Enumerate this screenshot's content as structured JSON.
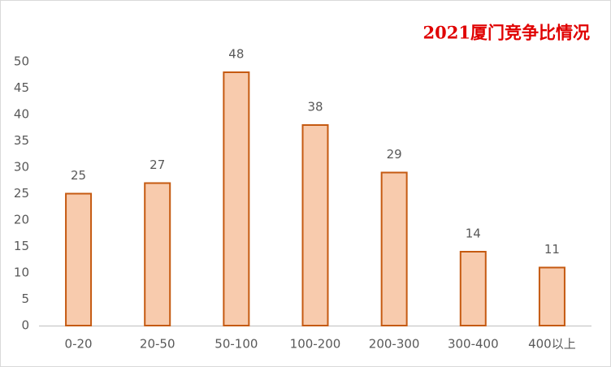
{
  "chart_data": {
    "type": "bar",
    "title": "2021厦门竞争比情况",
    "categories": [
      "0-20",
      "20-50",
      "50-100",
      "100-200",
      "200-300",
      "300-400",
      "400以上"
    ],
    "values": [
      25,
      27,
      48,
      38,
      29,
      14,
      11
    ],
    "color": "#f8cbad",
    "edge_color": "#c55a11",
    "title_color": "#e00000",
    "ylim": [
      0,
      50
    ],
    "yticks": [
      0,
      5,
      10,
      15,
      20,
      25,
      30,
      35,
      40,
      45,
      50
    ],
    "grid": false,
    "data_labels": true
  }
}
